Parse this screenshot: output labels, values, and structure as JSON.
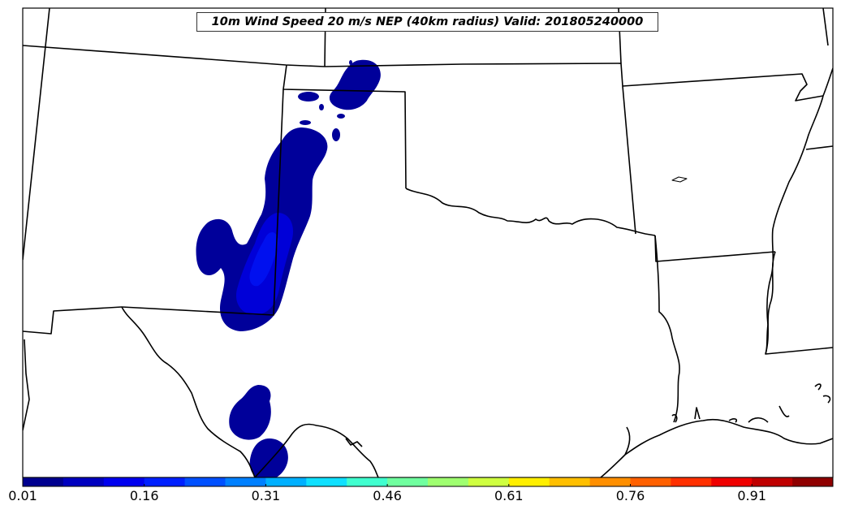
{
  "map": {
    "title": "10m Wind Speed 20 m/s NEP (40km radius) Valid: 201805240000",
    "field": "10m Wind Speed 20 m/s NEP",
    "valid_time": "201805240000",
    "radius": "40km radius"
  },
  "colorbar": {
    "min": 0.01,
    "max": 1.01,
    "step": 0.05,
    "tick_labels": [
      "0.01",
      "0.16",
      "0.31",
      "0.46",
      "0.61",
      "0.76",
      "0.91"
    ],
    "tick_values": [
      0.01,
      0.16,
      0.31,
      0.46,
      0.61,
      0.76,
      0.91
    ],
    "colors": [
      "#00008f",
      "#0000bf",
      "#0000ef",
      "#0020ff",
      "#0050ff",
      "#0080ff",
      "#00b0ff",
      "#10e0ff",
      "#40ffcf",
      "#70ff9f",
      "#9fff70",
      "#cfff40",
      "#ffef00",
      "#ffbf00",
      "#ff8f00",
      "#ff6000",
      "#ff3000",
      "#ef0000",
      "#bf0000",
      "#8f0000"
    ]
  },
  "probability_regions": {
    "dark_color": "#00009a",
    "mid_color": "#0000d8",
    "light_color": "#0010ef"
  }
}
